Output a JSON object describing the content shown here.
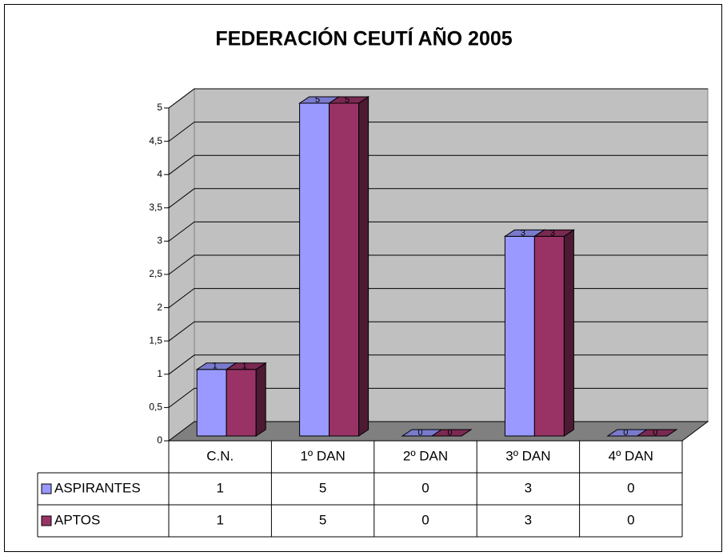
{
  "chart_data": {
    "type": "bar3d",
    "title": "FEDERACIÓN CEUTÍ AÑO 2005",
    "categories": [
      "C.N.",
      "1º DAN",
      "2º DAN",
      "3º DAN",
      "4º DAN"
    ],
    "series": [
      {
        "name": "ASPIRANTES",
        "color": "#9999ff",
        "values": [
          1,
          5,
          0,
          3,
          0
        ]
      },
      {
        "name": "APTOS",
        "color": "#993366",
        "values": [
          1,
          5,
          0,
          3,
          0
        ]
      }
    ],
    "ylim": [
      0,
      5
    ],
    "yticks": [
      0,
      {
        "value": 0.5,
        "label": "0,5"
      },
      1,
      {
        "value": 1.5,
        "label": "1,5"
      },
      2,
      {
        "value": 2.5,
        "label": "2,5"
      },
      3,
      {
        "value": 3.5,
        "label": "3,5"
      },
      4,
      {
        "value": 4.5,
        "label": "4,5"
      },
      5
    ],
    "grid": true,
    "data_table": true
  }
}
